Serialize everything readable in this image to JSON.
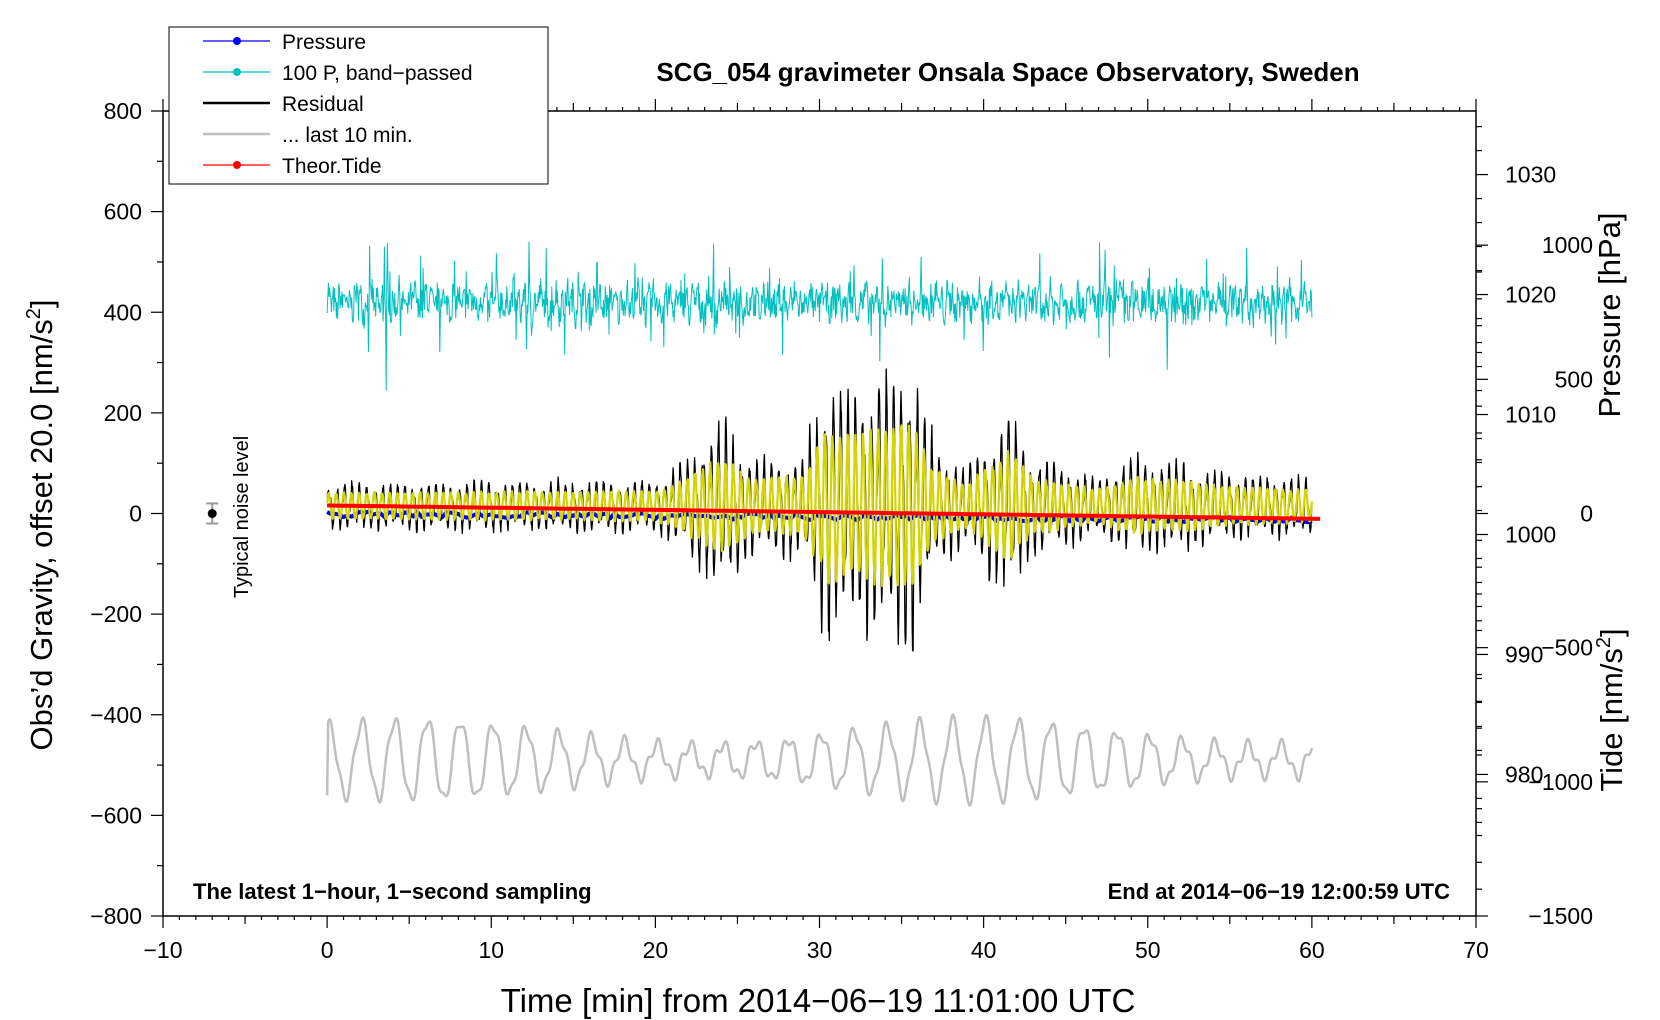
{
  "chart_data": {
    "type": "line",
    "title": "SCG_054 gravimeter Onsala Space Observatory, Sweden",
    "xlabel": "Time [min] from 2014−06−19 11:01:00 UTC",
    "ylabel_left_main": "Obs’d Gravity, offset 20.0 [nm/s",
    "ylabel_left_sup": "2",
    "ylabel_left_tail": "]",
    "ylabel_right_pressure": "Pressure [hPa]",
    "ylabel_right_tide_main": "Tide [nm/s",
    "ylabel_right_tide_sup": "2",
    "ylabel_right_tide_tail": "]",
    "xlim": [
      -10,
      70
    ],
    "ylim": [
      -800,
      800
    ],
    "pressure_lim": [
      968.2,
      1035.3
    ],
    "tide_lim": [
      -1500,
      1500
    ],
    "x_ticks": [
      {
        "v": -10,
        "label": "−10"
      },
      {
        "v": 0,
        "label": "0"
      },
      {
        "v": 10,
        "label": "10"
      },
      {
        "v": 20,
        "label": "20"
      },
      {
        "v": 30,
        "label": "30"
      },
      {
        "v": 40,
        "label": "40"
      },
      {
        "v": 50,
        "label": "50"
      },
      {
        "v": 60,
        "label": "60"
      },
      {
        "v": 70,
        "label": "70"
      }
    ],
    "y_ticks": [
      {
        "v": 800,
        "label": "800"
      },
      {
        "v": 600,
        "label": "600"
      },
      {
        "v": 400,
        "label": "400"
      },
      {
        "v": 200,
        "label": "200"
      },
      {
        "v": 0,
        "label": "0"
      },
      {
        "v": -200,
        "label": "−200"
      },
      {
        "v": -400,
        "label": "−400"
      },
      {
        "v": -600,
        "label": "−600"
      },
      {
        "v": -800,
        "label": "−800"
      }
    ],
    "pressure_ticks": [
      {
        "v": 1030,
        "label": "1030"
      },
      {
        "v": 1020,
        "label": "1020"
      },
      {
        "v": 1010,
        "label": "1010"
      },
      {
        "v": 1000,
        "label": "1000"
      },
      {
        "v": 990,
        "label": "990"
      },
      {
        "v": 980,
        "label": "980"
      }
    ],
    "tide_ticks": [
      {
        "v": 1000,
        "label": "1000"
      },
      {
        "v": 500,
        "label": "500"
      },
      {
        "v": 0,
        "label": "0"
      },
      {
        "v": -500,
        "label": "−500"
      },
      {
        "v": -1000,
        "label": "−1000"
      },
      {
        "v": -1500,
        "label": "−1500"
      }
    ],
    "legend": [
      {
        "name": "Pressure",
        "color": "#0000ff",
        "marker": true
      },
      {
        "name": "100 P, band−passed",
        "color": "#00c0c0",
        "marker": true
      },
      {
        "name": "Residual",
        "color": "#000000",
        "marker": false
      },
      {
        "name": "... last 10 min.",
        "color": "#bfbfbf",
        "marker": false
      },
      {
        "name": "Theor.Tide",
        "color": "#ff0000",
        "marker": true
      }
    ],
    "legend_position": "top-left",
    "noise_label": "Typical noise level",
    "noise_bar": {
      "x": -7,
      "y": 0,
      "err": 20
    },
    "footer_left": "The latest 1−hour, 1−second sampling",
    "footer_right": "End at 2014−06−19 12:00:59 UTC",
    "series": {
      "pressure": {
        "name": "Pressure",
        "color": "#0000ff",
        "axis": "pressure",
        "start": 1001.7,
        "end": 1001.2,
        "x": [
          0,
          60
        ]
      },
      "bandpassed_pressure": {
        "name": "100 P, band−passed",
        "color": "#00c0c0",
        "axis": "left",
        "center": 420,
        "amplitude": [
          -175,
          110
        ],
        "x": [
          0,
          60
        ]
      },
      "residual": {
        "name": "Residual",
        "color": "#000000",
        "axis": "left",
        "center": 15,
        "min": -290,
        "max": 310,
        "x": [
          0,
          60
        ],
        "envelope": [
          {
            "x": 0,
            "a": 45
          },
          {
            "x": 20,
            "a": 50
          },
          {
            "x": 21,
            "a": 70
          },
          {
            "x": 24,
            "a": 160
          },
          {
            "x": 26,
            "a": 90
          },
          {
            "x": 29,
            "a": 100
          },
          {
            "x": 30.5,
            "a": 260
          },
          {
            "x": 32,
            "a": 230
          },
          {
            "x": 35.5,
            "a": 290
          },
          {
            "x": 37,
            "a": 120
          },
          {
            "x": 39,
            "a": 75
          },
          {
            "x": 41.5,
            "a": 185
          },
          {
            "x": 43,
            "a": 95
          },
          {
            "x": 47,
            "a": 55
          },
          {
            "x": 49,
            "a": 95
          },
          {
            "x": 52,
            "a": 85
          },
          {
            "x": 55,
            "a": 65
          },
          {
            "x": 60,
            "a": 55
          }
        ]
      },
      "residual_filtered": {
        "color": "#d4d400",
        "axis": "left",
        "x": [
          0,
          60
        ]
      },
      "last_10_min": {
        "name": "... last 10 min.",
        "color": "#bfbfbf",
        "axis": "left",
        "center": -490,
        "min": -580,
        "max": -410,
        "x": [
          0,
          60
        ]
      },
      "theor_tide": {
        "name": "Theor.Tide",
        "color": "#ff0000",
        "axis": "tide",
        "start": 30,
        "end": -20,
        "x": [
          0,
          60.5
        ]
      }
    }
  }
}
